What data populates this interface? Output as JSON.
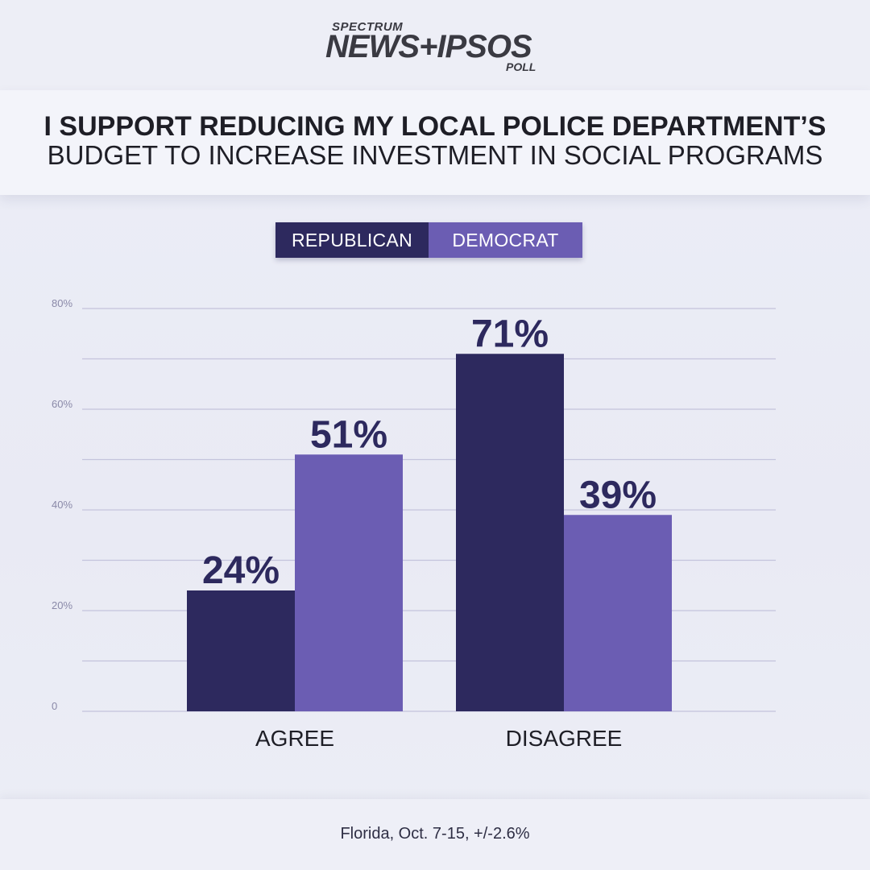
{
  "logo": {
    "brand_top": "SPECTRUM",
    "brand_main": "NEWS+IPSOS",
    "brand_sub": "POLL"
  },
  "title": {
    "line1": "I SUPPORT REDUCING MY LOCAL POLICE DEPARTMENT’S",
    "line2": "BUDGET TO INCREASE INVESTMENT IN SOCIAL PROGRAMS"
  },
  "legend": [
    {
      "label": "REPUBLICAN",
      "color": "#2d295e"
    },
    {
      "label": "DEMOCRAT",
      "color": "#6b5db3"
    }
  ],
  "footer": {
    "note": "Florida, Oct. 7-15, +/-2.6%"
  },
  "chart_data": {
    "type": "bar",
    "title": "I SUPPORT REDUCING MY LOCAL POLICE DEPARTMENT’S BUDGET TO INCREASE INVESTMENT IN SOCIAL PROGRAMS",
    "categories": [
      "AGREE",
      "DISAGREE"
    ],
    "series": [
      {
        "name": "REPUBLICAN",
        "values": [
          24,
          71
        ],
        "labels": [
          "24%",
          "71%"
        ],
        "color": "#2d295e"
      },
      {
        "name": "DEMOCRAT",
        "values": [
          51,
          39
        ],
        "labels": [
          "51%",
          "39%"
        ],
        "color": "#6b5db3"
      }
    ],
    "ylim": [
      0,
      80
    ],
    "yticks": [
      0,
      20,
      40,
      60,
      80
    ],
    "ytick_labels": [
      "0",
      "20%",
      "40%",
      "60%",
      "80%"
    ],
    "minor_gridlines": [
      10,
      30,
      50,
      70
    ],
    "grid": true,
    "legend_position": "top-center",
    "xlabel": "",
    "ylabel": ""
  }
}
